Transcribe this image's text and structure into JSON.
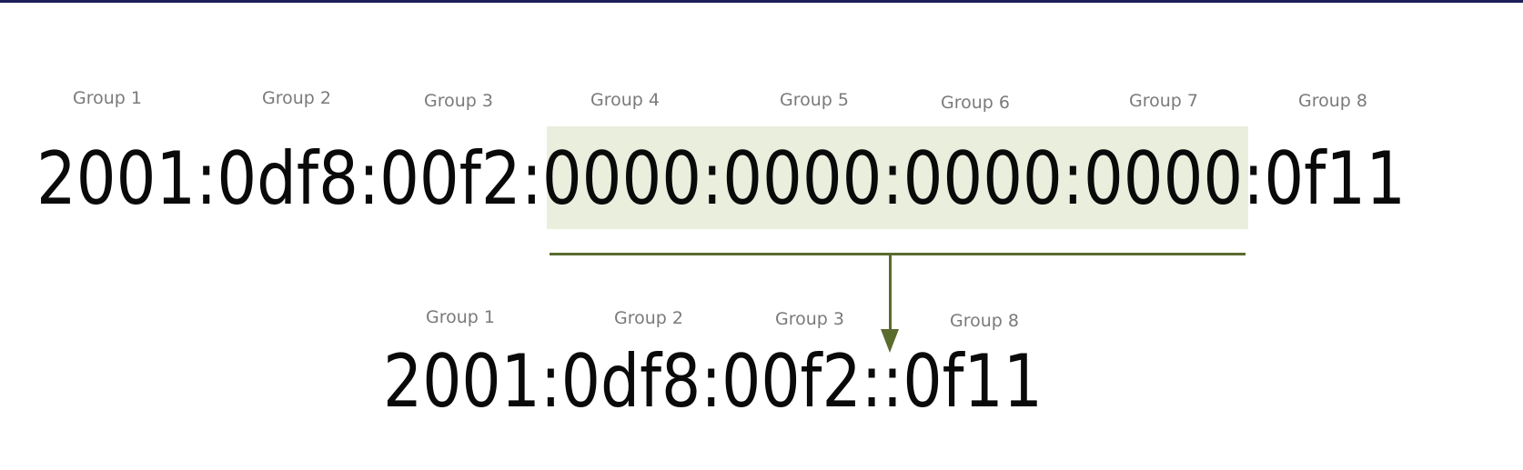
{
  "full_address": {
    "text": "2001:0df8:00f2:0000:0000:0000:0000:0f11",
    "group_labels": [
      "Group 1",
      "Group 2",
      "Group 3",
      "Group 4",
      "Group 5",
      "Group 6",
      "Group 7",
      "Group 8"
    ]
  },
  "compressed_address": {
    "text": "2001:0df8:00f2::0f11",
    "group_labels": [
      "Group 1",
      "Group 2",
      "Group 3",
      "Group 8"
    ]
  },
  "colors": {
    "highlight": "#eaeedd",
    "connector": "#5a6b2e",
    "top_bar": "#1e1e5a",
    "label_text": "#7a7a7a"
  }
}
